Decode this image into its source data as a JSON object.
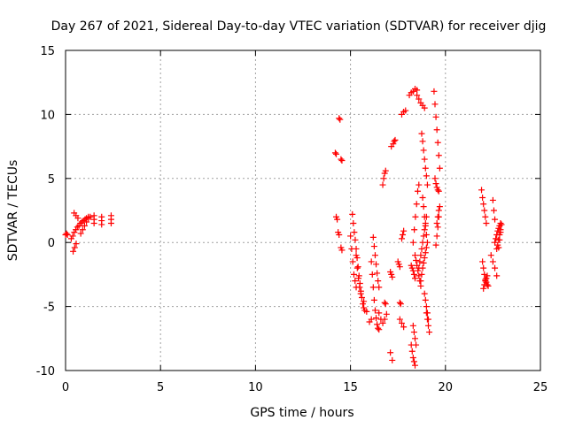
{
  "chart_data": {
    "type": "scatter",
    "title": "Day 267 of 2021, Sidereal Day-to-day VTEC variation (SDTVAR) for receiver djig",
    "xlabel": "GPS time / hours",
    "ylabel": "SDTVAR / TECUs",
    "xlim": [
      0,
      25
    ],
    "ylim": [
      -10,
      15
    ],
    "xticks": [
      0,
      5,
      10,
      15,
      20,
      25
    ],
    "yticks": [
      -10,
      -5,
      0,
      5,
      10,
      15
    ],
    "grid": true,
    "marker": "+",
    "color": "#ff0000",
    "segments": [
      {
        "x": [
          0.0,
          0.05,
          0.1
        ],
        "y": [
          0.6,
          0.7,
          0.6
        ]
      },
      {
        "x": [
          0.3,
          0.38,
          0.46,
          0.54,
          0.62,
          0.7,
          0.78,
          0.86,
          0.94,
          1.02,
          1.1,
          1.2,
          1.3
        ],
        "y": [
          0.3,
          0.5,
          0.8,
          1.0,
          1.2,
          1.3,
          1.5,
          1.6,
          1.7,
          1.8,
          1.9,
          2.0,
          2.0
        ]
      },
      {
        "x": [
          0.4,
          0.48,
          0.56
        ],
        "y": [
          -0.7,
          -0.4,
          -0.1
        ]
      },
      {
        "x": [
          0.45,
          0.55,
          0.65
        ],
        "y": [
          2.3,
          2.1,
          1.9
        ]
      },
      {
        "x": [
          0.8,
          0.9,
          1.0,
          1.1,
          1.2
        ],
        "y": [
          0.7,
          1.0,
          1.3,
          1.6,
          1.9
        ]
      },
      {
        "x": [
          1.5,
          1.5,
          1.5
        ],
        "y": [
          1.5,
          1.8,
          2.1
        ]
      },
      {
        "x": [
          1.9,
          1.9,
          1.9
        ],
        "y": [
          1.4,
          1.7,
          2.0
        ]
      },
      {
        "x": [
          2.4,
          2.4,
          2.4
        ],
        "y": [
          1.5,
          1.8,
          2.1
        ]
      },
      {
        "x": [
          14.2,
          14.25
        ],
        "y": [
          7.0,
          6.9
        ]
      },
      {
        "x": [
          14.4,
          14.45
        ],
        "y": [
          9.7,
          9.6
        ]
      },
      {
        "x": [
          14.5,
          14.55
        ],
        "y": [
          6.5,
          6.4
        ]
      },
      {
        "x": [
          14.25,
          14.3,
          14.35,
          14.4
        ],
        "y": [
          2.0,
          1.8,
          0.8,
          0.6
        ]
      },
      {
        "x": [
          14.5,
          14.55
        ],
        "y": [
          -0.4,
          -0.6
        ]
      },
      {
        "x": [
          15.1,
          15.15,
          15.2,
          15.25,
          15.3,
          15.35,
          15.4,
          15.45,
          15.5,
          15.55,
          15.6,
          15.65,
          15.7,
          15.75
        ],
        "y": [
          2.2,
          1.5,
          0.8,
          0.2,
          -0.5,
          -1.2,
          -1.9,
          -2.6,
          -3.2,
          -3.8,
          -4.3,
          -4.8,
          -5.1,
          -5.3
        ]
      },
      {
        "x": [
          15.0,
          15.06,
          15.12,
          15.18,
          15.24,
          15.3
        ],
        "y": [
          0.5,
          -0.5,
          -1.5,
          -2.5,
          -3.0,
          -3.5
        ]
      },
      {
        "x": [
          15.3,
          15.36,
          15.42,
          15.48,
          15.54
        ],
        "y": [
          -1.0,
          -2.0,
          -2.8,
          -3.5,
          -4.0
        ]
      },
      {
        "x": [
          15.7,
          15.85,
          16.0,
          16.1
        ],
        "y": [
          -4.6,
          -5.4,
          -6.2,
          -6.0
        ]
      },
      {
        "x": [
          16.1,
          16.15,
          16.2,
          16.25,
          16.3,
          16.35,
          16.4,
          16.45,
          16.5
        ],
        "y": [
          -1.5,
          -2.5,
          -3.5,
          -4.5,
          -5.3,
          -5.9,
          -6.4,
          -6.7,
          -6.8
        ]
      },
      {
        "x": [
          16.2,
          16.25,
          16.3,
          16.35,
          16.4,
          16.45,
          16.5
        ],
        "y": [
          0.4,
          -0.3,
          -1.0,
          -1.7,
          -2.4,
          -3.0,
          -3.5
        ]
      },
      {
        "x": [
          16.5,
          16.6,
          16.7,
          16.8,
          16.9
        ],
        "y": [
          -5.5,
          -6.0,
          -6.3,
          -6.0,
          -5.6
        ]
      },
      {
        "x": [
          16.7,
          16.75,
          16.8,
          16.85
        ],
        "y": [
          4.5,
          5.0,
          5.4,
          5.6
        ]
      },
      {
        "x": [
          16.8,
          16.85
        ],
        "y": [
          -4.7,
          -4.8
        ]
      },
      {
        "x": [
          17.1,
          17.15,
          17.2
        ],
        "y": [
          -2.3,
          -2.5,
          -2.7
        ]
      },
      {
        "x": [
          17.1,
          17.2
        ],
        "y": [
          -8.6,
          -9.2
        ]
      },
      {
        "x": [
          17.15,
          17.25
        ],
        "y": [
          7.5,
          7.7
        ]
      },
      {
        "x": [
          17.3,
          17.35
        ],
        "y": [
          7.9,
          8.0
        ]
      },
      {
        "x": [
          17.5,
          17.55,
          17.6
        ],
        "y": [
          -1.5,
          -1.7,
          -1.9
        ]
      },
      {
        "x": [
          17.6,
          17.65
        ],
        "y": [
          -4.7,
          -4.8
        ]
      },
      {
        "x": [
          17.6,
          17.7,
          17.8
        ],
        "y": [
          -6.0,
          -6.3,
          -6.6
        ]
      },
      {
        "x": [
          17.7,
          17.8,
          17.9
        ],
        "y": [
          10.0,
          10.2,
          10.3
        ]
      },
      {
        "x": [
          17.7,
          17.75,
          17.8
        ],
        "y": [
          0.3,
          0.6,
          0.9
        ]
      },
      {
        "x": [
          18.1,
          18.2,
          18.3,
          18.4,
          18.5
        ],
        "y": [
          11.5,
          11.7,
          11.8,
          12.0,
          11.9
        ]
      },
      {
        "x": [
          18.5,
          18.6,
          18.7,
          18.8,
          18.9
        ],
        "y": [
          11.5,
          11.2,
          10.9,
          10.7,
          10.5
        ]
      },
      {
        "x": [
          18.2,
          18.25,
          18.3,
          18.35,
          18.4
        ],
        "y": [
          -8.0,
          -8.5,
          -9.0,
          -9.3,
          -9.6
        ]
      },
      {
        "x": [
          18.3,
          18.35,
          18.4,
          18.45
        ],
        "y": [
          -6.5,
          -7.0,
          -7.5,
          -8.0
        ]
      },
      {
        "x": [
          18.2,
          18.25,
          18.3,
          18.35,
          18.4
        ],
        "y": [
          -1.8,
          -2.0,
          -2.2,
          -2.5,
          -2.8
        ]
      },
      {
        "x": [
          18.3,
          18.36,
          18.42,
          18.48,
          18.54,
          18.6
        ],
        "y": [
          0.0,
          1.0,
          2.0,
          3.0,
          4.0,
          4.5
        ]
      },
      {
        "x": [
          18.4,
          18.45,
          18.5,
          18.55,
          18.6,
          18.65,
          18.7
        ],
        "y": [
          -1.0,
          -1.4,
          -1.8,
          -2.2,
          -2.6,
          -3.0,
          -3.4
        ]
      },
      {
        "x": [
          18.6,
          18.65,
          18.7,
          18.75,
          18.8,
          18.85,
          18.9,
          18.95,
          19.0
        ],
        "y": [
          -2.0,
          -1.5,
          -1.0,
          -0.5,
          0.0,
          0.5,
          1.0,
          1.5,
          2.0
        ]
      },
      {
        "x": [
          18.7,
          18.75,
          18.8,
          18.85,
          18.9,
          18.95,
          19.0,
          19.05
        ],
        "y": [
          -3.0,
          -2.5,
          -2.0,
          -1.6,
          -1.2,
          -0.8,
          -0.4,
          0.0
        ]
      },
      {
        "x": [
          18.75,
          18.8,
          18.85,
          18.9,
          18.95,
          19.0,
          19.05
        ],
        "y": [
          8.5,
          7.9,
          7.2,
          6.5,
          5.8,
          5.2,
          4.5
        ]
      },
      {
        "x": [
          18.8,
          18.85,
          18.9,
          18.95,
          19.0
        ],
        "y": [
          3.5,
          2.8,
          2.0,
          1.3,
          0.6
        ]
      },
      {
        "x": [
          18.9,
          18.95,
          19.0,
          19.05,
          19.1
        ],
        "y": [
          -4.0,
          -4.5,
          -5.0,
          -5.5,
          -6.0
        ]
      },
      {
        "x": [
          19.0,
          19.05,
          19.1,
          19.15
        ],
        "y": [
          -5.5,
          -6.0,
          -6.5,
          -7.0
        ]
      },
      {
        "x": [
          19.4,
          19.45,
          19.5,
          19.55,
          19.6,
          19.65,
          19.7
        ],
        "y": [
          11.8,
          10.8,
          9.8,
          8.8,
          7.8,
          6.8,
          5.8
        ]
      },
      {
        "x": [
          19.45,
          19.5,
          19.55,
          19.6,
          19.65
        ],
        "y": [
          5.0,
          4.6,
          4.3,
          4.1,
          4.0
        ]
      },
      {
        "x": [
          19.5,
          19.55,
          19.6,
          19.65,
          19.7
        ],
        "y": [
          -0.2,
          0.5,
          1.2,
          2.0,
          2.8
        ]
      },
      {
        "x": [
          19.55,
          19.6,
          19.65
        ],
        "y": [
          1.5,
          2.0,
          2.5
        ]
      },
      {
        "x": [
          21.9,
          21.95,
          22.0,
          22.05,
          22.1,
          22.15
        ],
        "y": [
          4.1,
          3.5,
          3.0,
          2.5,
          2.0,
          1.5
        ]
      },
      {
        "x": [
          21.95,
          22.0,
          22.05,
          22.1,
          22.15,
          22.2,
          22.25
        ],
        "y": [
          -1.5,
          -2.0,
          -2.5,
          -2.9,
          -3.1,
          -3.3,
          -3.4
        ]
      },
      {
        "x": [
          22.0,
          22.05,
          22.1,
          22.15,
          22.2
        ],
        "y": [
          -3.6,
          -3.3,
          -3.0,
          -2.8,
          -2.6
        ]
      },
      {
        "x": [
          22.5,
          22.55,
          22.6
        ],
        "y": [
          3.3,
          2.5,
          1.8
        ]
      },
      {
        "x": [
          22.4,
          22.5,
          22.6,
          22.7
        ],
        "y": [
          -1.0,
          -1.5,
          -2.0,
          -2.6
        ]
      },
      {
        "x": [
          22.6,
          22.65,
          22.7,
          22.75,
          22.8,
          22.85,
          22.9
        ],
        "y": [
          0.0,
          0.3,
          0.6,
          0.9,
          1.1,
          1.3,
          1.5
        ]
      },
      {
        "x": [
          22.7,
          22.75,
          22.8,
          22.85,
          22.9
        ],
        "y": [
          -0.5,
          -0.2,
          0.2,
          0.6,
          1.0
        ]
      },
      {
        "x": [
          22.8,
          22.85,
          22.9,
          22.95
        ],
        "y": [
          -0.4,
          0.2,
          0.8,
          1.4
        ]
      }
    ]
  }
}
